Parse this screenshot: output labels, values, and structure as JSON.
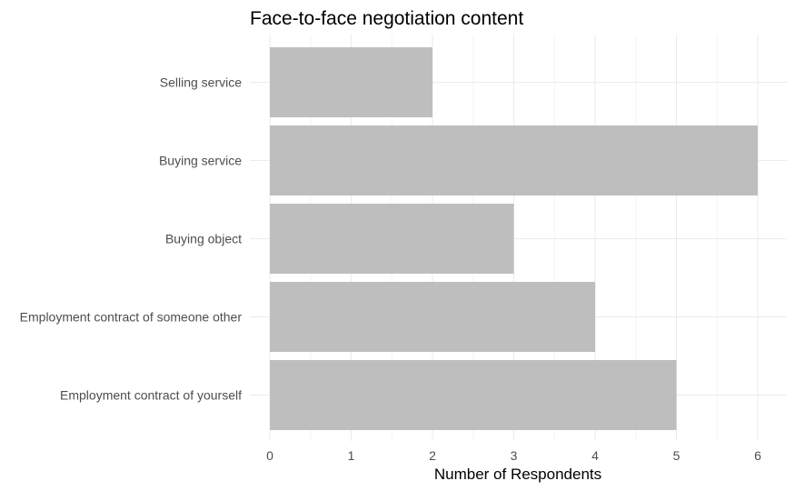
{
  "chart_data": {
    "type": "bar",
    "orientation": "horizontal",
    "title": "Face-to-face negotiation content",
    "xlabel": "Number of Respondents",
    "ylabel": "",
    "categories": [
      "Selling service",
      "Buying service",
      "Buying object",
      "Employment contract of someone other",
      "Employment contract of yourself"
    ],
    "values": [
      2,
      6,
      3,
      4,
      5
    ],
    "xlim": [
      0,
      6.3
    ],
    "x_ticks": [
      "0",
      "1",
      "2",
      "3",
      "4",
      "5",
      "6"
    ],
    "grid": true,
    "legend": "none",
    "bar_color": "#bebebe"
  }
}
